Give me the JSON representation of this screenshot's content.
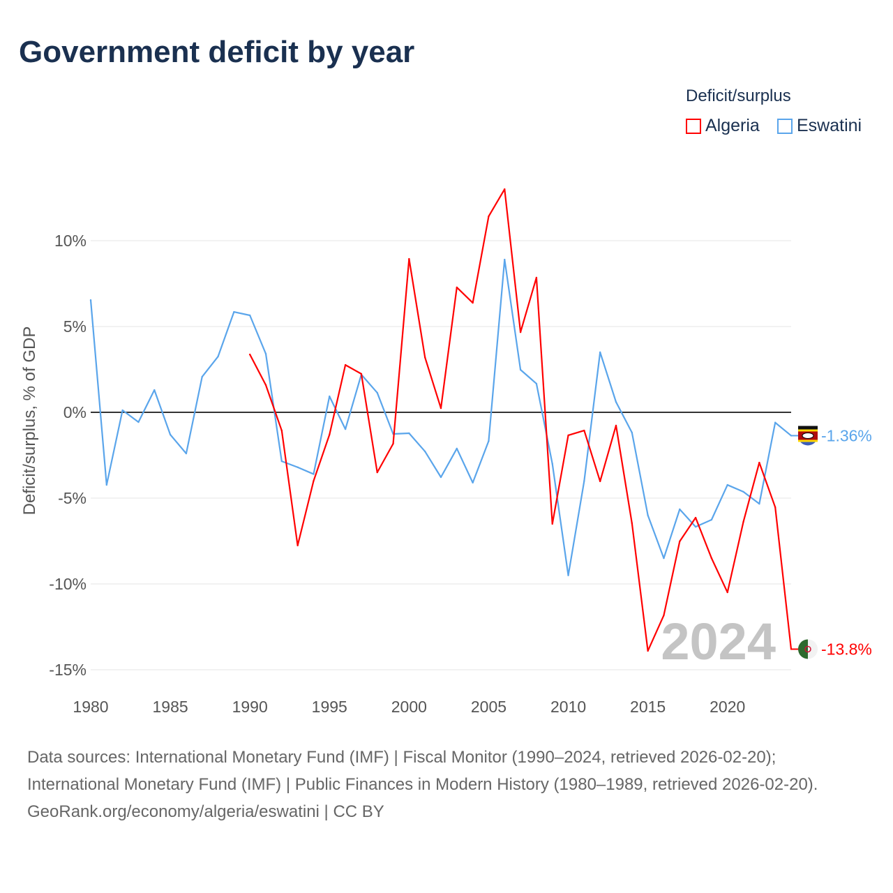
{
  "title": "Government deficit by year",
  "chart_data": {
    "type": "line",
    "title": "Government deficit by year",
    "ylabel": "Deficit/surplus, % of GDP",
    "xlabel": "",
    "xlim": [
      1980,
      2024
    ],
    "ylim": [
      -15,
      10
    ],
    "yticks": [
      {
        "v": 10,
        "label": "10%"
      },
      {
        "v": 5,
        "label": "5%"
      },
      {
        "v": 0,
        "label": "0%"
      },
      {
        "v": -5,
        "label": "-5%"
      },
      {
        "v": -10,
        "label": "-10%"
      },
      {
        "v": -15,
        "label": "-15%"
      }
    ],
    "xticks": [
      1980,
      1985,
      1990,
      1995,
      2000,
      2005,
      2010,
      2015,
      2020
    ],
    "legend_title": "Deficit/surplus",
    "legend_position": "top-right",
    "year_watermark": "2024",
    "series": [
      {
        "name": "Algeria",
        "color": "#ff0000",
        "end_label": "-13.8%",
        "flag": "algeria-flag",
        "x": [
          1990,
          1991,
          1992,
          1993,
          1994,
          1995,
          1996,
          1997,
          1998,
          1999,
          2000,
          2001,
          2002,
          2003,
          2004,
          2005,
          2006,
          2007,
          2008,
          2009,
          2010,
          2011,
          2012,
          2013,
          2014,
          2015,
          2016,
          2017,
          2018,
          2019,
          2020,
          2021,
          2022,
          2023,
          2024
        ],
        "y": [
          3.37,
          1.59,
          -1.06,
          -7.76,
          -4.0,
          -1.3,
          2.76,
          2.24,
          -3.5,
          -1.83,
          8.94,
          3.2,
          0.24,
          7.28,
          6.38,
          11.42,
          13.0,
          4.67,
          7.85,
          -6.5,
          -1.34,
          -1.06,
          -4.02,
          -0.77,
          -6.46,
          -13.9,
          -11.83,
          -7.52,
          -6.14,
          -8.5,
          -10.49,
          -6.38,
          -2.93,
          -5.53,
          -13.8
        ]
      },
      {
        "name": "Eswatini",
        "color": "#5aa5eb",
        "end_label": "-1.36%",
        "flag": "eswatini-flag",
        "x": [
          1980,
          1981,
          1982,
          1983,
          1984,
          1985,
          1986,
          1987,
          1988,
          1989,
          1990,
          1991,
          1992,
          1993,
          1994,
          1995,
          1996,
          1997,
          1998,
          1999,
          2000,
          2001,
          2002,
          2003,
          2004,
          2005,
          2006,
          2007,
          2008,
          2009,
          2010,
          2011,
          2012,
          2013,
          2014,
          2015,
          2016,
          2017,
          2018,
          2019,
          2020,
          2021,
          2022,
          2023,
          2024
        ],
        "y": [
          6.54,
          -4.23,
          0.12,
          -0.57,
          1.3,
          -1.3,
          -2.4,
          2.07,
          3.25,
          5.85,
          5.65,
          3.41,
          -2.85,
          -3.2,
          -3.6,
          0.93,
          -0.98,
          2.2,
          1.14,
          -1.26,
          -1.22,
          -2.28,
          -3.78,
          -2.11,
          -4.1,
          -1.67,
          8.9,
          2.48,
          1.67,
          -3.0,
          -9.5,
          -4.0,
          3.5,
          0.6,
          -1.18,
          -6.0,
          -8.5,
          -5.65,
          -6.67,
          -6.26,
          -4.23,
          -4.63,
          -5.33,
          -0.6,
          -1.36
        ]
      }
    ]
  },
  "sources": {
    "line1": "Data sources: International Monetary Fund (IMF) | Fiscal Monitor (1990–2024, retrieved 2026-02-20); International Monetary Fund (IMF) | Public Finances in Modern History (1980–1989, retrieved 2026-02-20).",
    "line2": "GeoRank.org/economy/algeria/eswatini | CC BY"
  }
}
